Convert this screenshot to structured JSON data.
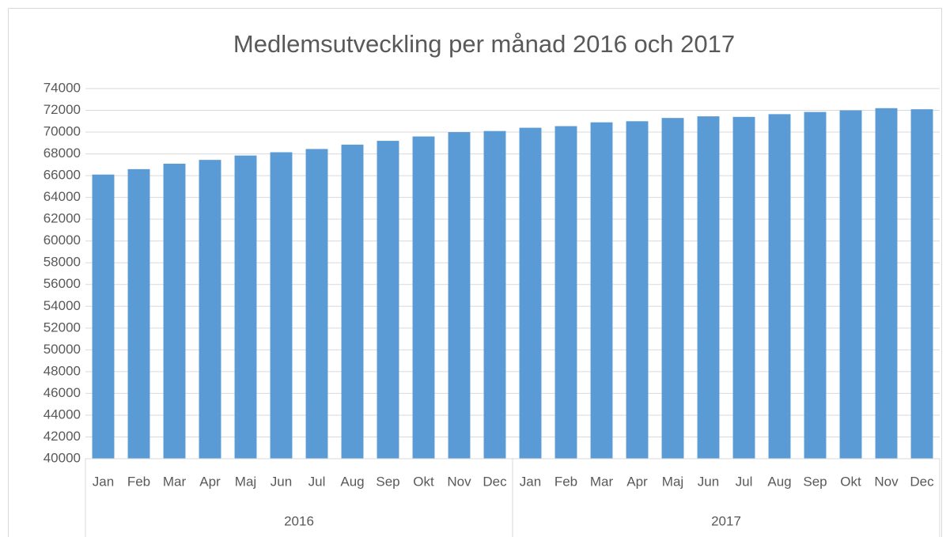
{
  "chart_data": {
    "type": "bar",
    "title": "Medlemsutveckling per månad 2016 och 2017",
    "categories": [
      "Jan",
      "Feb",
      "Mar",
      "Apr",
      "Maj",
      "Jun",
      "Jul",
      "Aug",
      "Sep",
      "Okt",
      "Nov",
      "Dec",
      "Jan",
      "Feb",
      "Mar",
      "Apr",
      "Maj",
      "Jun",
      "Jul",
      "Aug",
      "Sep",
      "Okt",
      "Nov",
      "Dec"
    ],
    "groups": [
      "2016",
      "2017"
    ],
    "values": [
      66100,
      66600,
      67100,
      67450,
      67850,
      68150,
      68450,
      68850,
      69200,
      69600,
      70000,
      70100,
      70400,
      70550,
      70900,
      71000,
      71300,
      71450,
      71400,
      71650,
      71850,
      72000,
      72200,
      72100
    ],
    "color": "#5b9bd5",
    "ylim": [
      40000,
      74000
    ],
    "yticks": [
      40000,
      42000,
      44000,
      46000,
      48000,
      50000,
      52000,
      54000,
      56000,
      58000,
      60000,
      62000,
      64000,
      66000,
      68000,
      70000,
      72000,
      74000
    ],
    "grid": true
  }
}
